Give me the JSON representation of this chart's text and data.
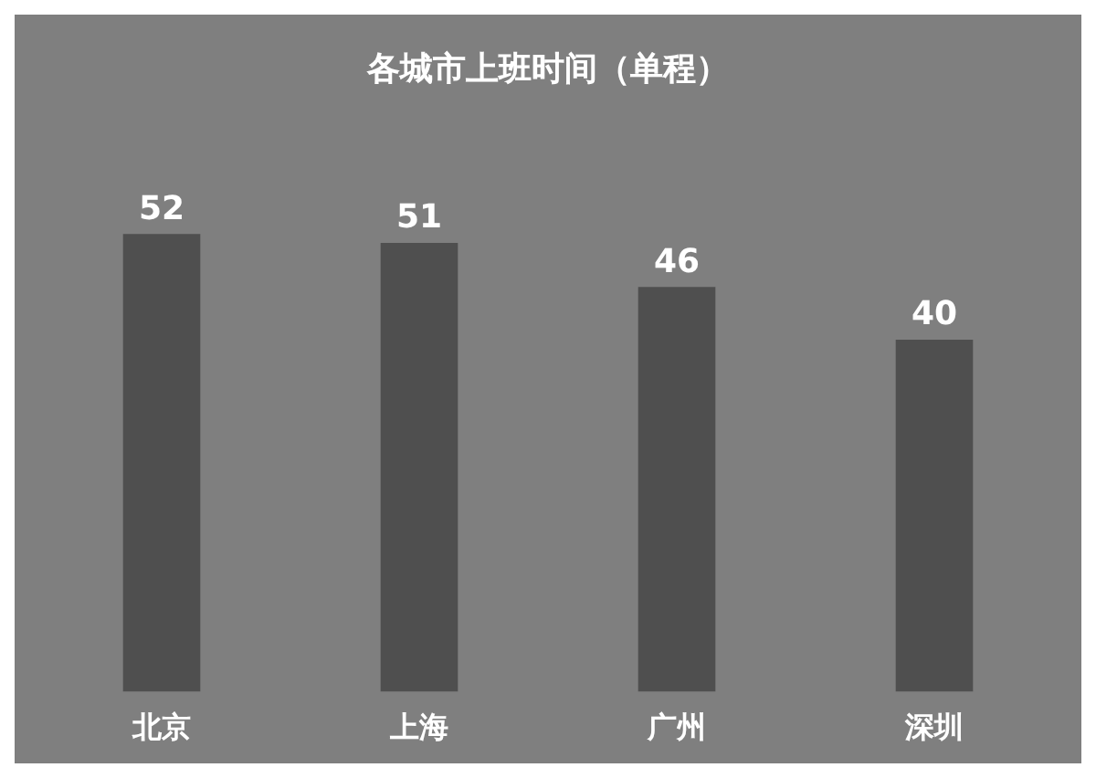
{
  "chart_data": {
    "type": "bar",
    "title": "各城市上班时间（单程）",
    "categories": [
      "北京",
      "上海",
      "广州",
      "深圳"
    ],
    "values": [
      52,
      51,
      46,
      40
    ],
    "color": "#4f4f4f",
    "data_labels": true
  }
}
